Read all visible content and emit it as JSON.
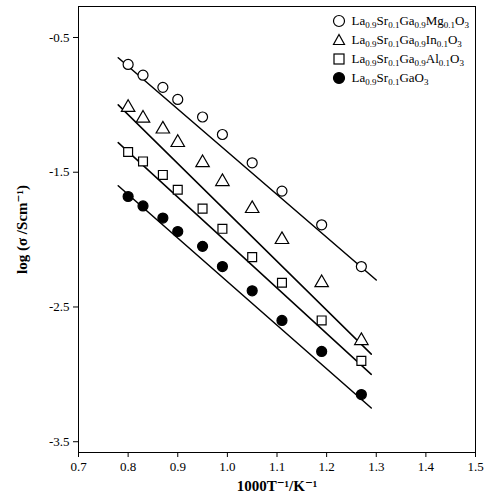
{
  "chart_data": {
    "type": "scatter",
    "x_label": "1000T⁻¹/K⁻¹",
    "y_label": "log (σ /Scm⁻¹)",
    "x": [
      0.8,
      0.83,
      0.87,
      0.9,
      0.95,
      0.99,
      1.05,
      1.11,
      1.19,
      1.27
    ],
    "series": [
      {
        "name": "La0.9Sr0.1Ga0.9Mg0.1O3",
        "color": "#000000",
        "marker": "open-circle",
        "values": [
          -0.7,
          -0.78,
          -0.87,
          -0.96,
          -1.09,
          -1.22,
          -1.43,
          -1.64,
          -1.89,
          -2.2
        ],
        "fit_x": [
          0.78,
          1.3
        ],
        "fit_values": [
          -0.65,
          -2.3
        ]
      },
      {
        "name": "La0.9Sr0.1Ga0.9In0.1O3",
        "color": "#000000",
        "marker": "open-triangle",
        "values": [
          -1.02,
          -1.1,
          -1.18,
          -1.28,
          -1.43,
          -1.57,
          -1.77,
          -2.0,
          -2.32,
          -2.75
        ],
        "fit_x": [
          0.78,
          1.29
        ],
        "fit_values": [
          -1.0,
          -2.85
        ]
      },
      {
        "name": "La0.9Sr0.1Ga0.9Al0.1O3",
        "color": "#000000",
        "marker": "open-square",
        "values": [
          -1.35,
          -1.42,
          -1.52,
          -1.63,
          -1.77,
          -1.92,
          -2.13,
          -2.32,
          -2.6,
          -2.9
        ],
        "fit_x": [
          0.78,
          1.29
        ],
        "fit_values": [
          -1.28,
          -3.0
        ]
      },
      {
        "name": "La0.9Sr0.1GaO3",
        "color": "#000000",
        "marker": "filled-circle",
        "values": [
          -1.68,
          -1.75,
          -1.84,
          -1.94,
          -2.05,
          -2.2,
          -2.38,
          -2.6,
          -2.83,
          -3.15
        ],
        "fit_x": [
          0.78,
          1.29
        ],
        "fit_values": [
          -1.6,
          -3.25
        ]
      }
    ],
    "xlim": [
      0.7,
      1.5
    ],
    "xticks": [
      0.7,
      0.8,
      0.9,
      {
        "value": 1,
        "label": "1.0"
      },
      1.1,
      1.2,
      1.3,
      1.4,
      1.5
    ],
    "ylim": [
      -3.58,
      -0.27
    ],
    "yticks": [
      -3.5,
      -2.5,
      -1.5,
      -0.5
    ],
    "legend": "upper right",
    "grid": false
  }
}
